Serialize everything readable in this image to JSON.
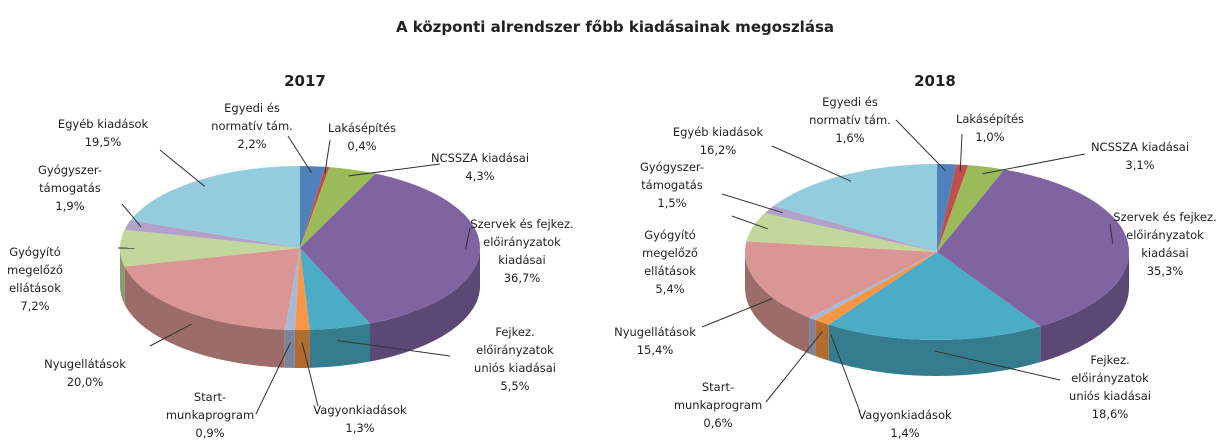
{
  "title": "A központi alrendszer főbb kiadásainak megoszlása",
  "chart_data": [
    {
      "type": "pie",
      "title": "2017",
      "categories": [
        "Egyedi és\nnormatív tám.",
        "Lakásépítés",
        "NCSSZA kiadásai",
        "Szervek és fejkez.\nelőirányzatok\nkiadásai",
        "Fejkez.\nelőirányzatok\nuniós kiadásai",
        "Vagyonkiadások",
        "Start-\nmunkaprogram",
        "Nyugellátások",
        "Gyógyító\nmegelőző\nellátások",
        "Gyógyszer-\ntámogatás",
        "Egyéb kiadások"
      ],
      "values": [
        2.2,
        0.4,
        4.3,
        36.7,
        5.5,
        1.3,
        0.9,
        20.0,
        7.2,
        1.9,
        19.5
      ],
      "value_labels": [
        "2,2%",
        "0,4%",
        "4,3%",
        "36,7%",
        "5,5%",
        "1,3%",
        "0,9%",
        "20,0%",
        "7,2%",
        "1,9%",
        "19,5%"
      ],
      "colors": [
        "#4f81bd",
        "#c0504d",
        "#9bbb59",
        "#8064a2",
        "#4bacc6",
        "#f79646",
        "#a6b9d9",
        "#d99694",
        "#c3d69b",
        "#b3a2c7",
        "#93cddd"
      ]
    },
    {
      "type": "pie",
      "title": "2018",
      "categories": [
        "Egyedi és\nnormatív tám.",
        "Lakásépítés",
        "NCSSZA kiadásai",
        "Szervek és fejkez.\nelőirányzatok\nkiadásai",
        "Fejkez.\nelőirányzatok\nuniós kiadásai",
        "Vagyonkiadások",
        "Start-\nmunkaprogram",
        "Nyugellátások",
        "Gyógyító\nmegelőző\nellátások",
        "Gyógyszer-\ntámogatás",
        "Egyéb kiadások"
      ],
      "values": [
        1.6,
        1.0,
        3.1,
        35.3,
        18.6,
        1.4,
        0.6,
        15.4,
        5.4,
        1.5,
        16.2
      ],
      "value_labels": [
        "1,6%",
        "1,0%",
        "3,1%",
        "35,3%",
        "18,6%",
        "1,4%",
        "0,6%",
        "15,4%",
        "5,4%",
        "1,5%",
        "16,2%"
      ],
      "colors": [
        "#4f81bd",
        "#c0504d",
        "#9bbb59",
        "#8064a2",
        "#4bacc6",
        "#f79646",
        "#a6b9d9",
        "#d99694",
        "#c3d69b",
        "#b3a2c7",
        "#93cddd"
      ]
    }
  ]
}
